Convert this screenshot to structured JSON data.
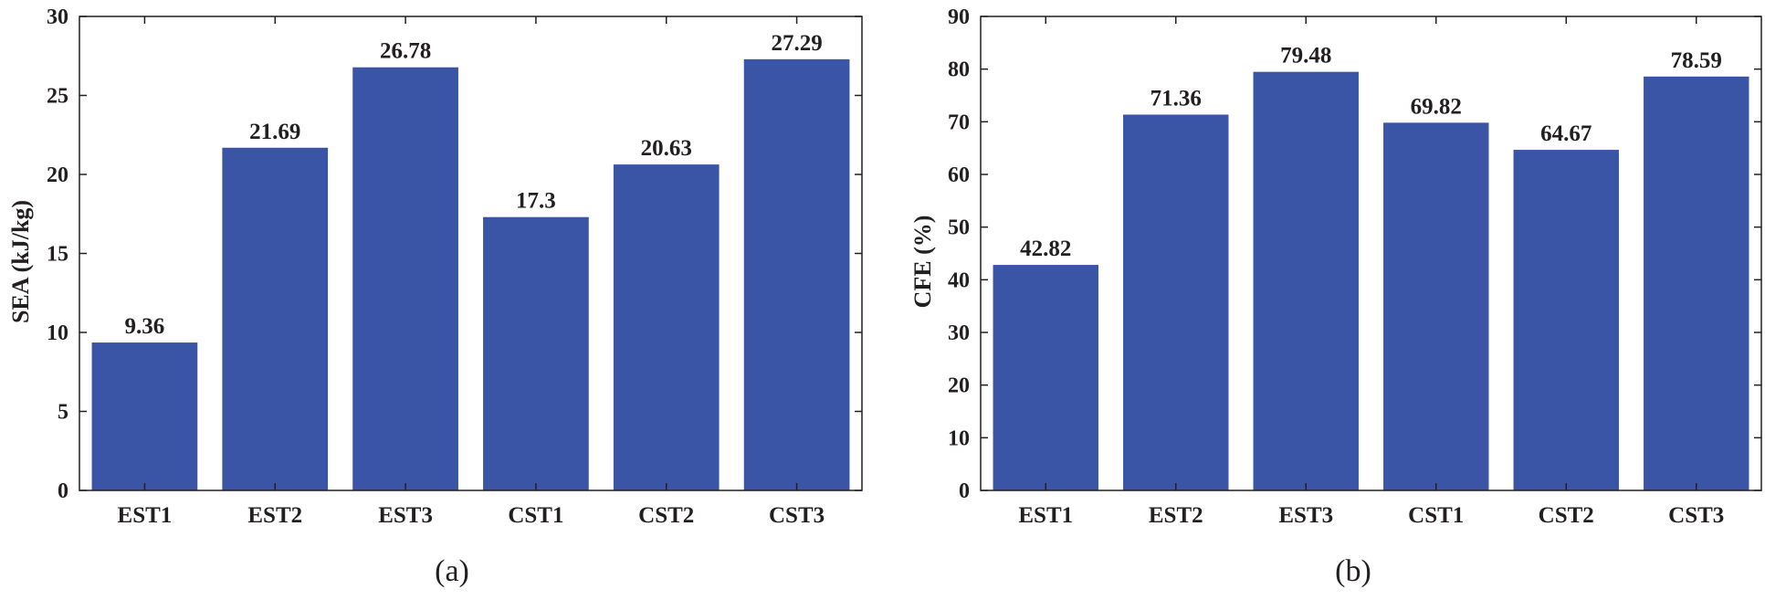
{
  "chart_data": [
    {
      "type": "bar",
      "panel_label": "(a)",
      "categories": [
        "EST1",
        "EST2",
        "EST3",
        "CST1",
        "CST2",
        "CST3"
      ],
      "values": [
        9.36,
        21.69,
        26.78,
        17.3,
        20.63,
        27.29
      ],
      "value_labels": [
        "9.36",
        "21.69",
        "26.78",
        "17.3",
        "20.63",
        "27.29"
      ],
      "ylabel": "SEA (kJ/kg)",
      "xlabel": "",
      "ylim": [
        0,
        30
      ],
      "yticks": [
        0,
        5,
        10,
        15,
        20,
        25,
        30
      ],
      "bar_color": "#3a55a6",
      "grid": false
    },
    {
      "type": "bar",
      "panel_label": "(b)",
      "categories": [
        "EST1",
        "EST2",
        "EST3",
        "CST1",
        "CST2",
        "CST3"
      ],
      "values": [
        42.82,
        71.36,
        79.48,
        69.82,
        64.67,
        78.59
      ],
      "value_labels": [
        "42.82",
        "71.36",
        "79.48",
        "69.82",
        "64.67",
        "78.59"
      ],
      "ylabel": "CFE (%)",
      "xlabel": "",
      "ylim": [
        0,
        90
      ],
      "yticks": [
        0,
        10,
        20,
        30,
        40,
        50,
        60,
        70,
        80,
        90
      ],
      "bar_color": "#3a55a6",
      "grid": false
    }
  ]
}
